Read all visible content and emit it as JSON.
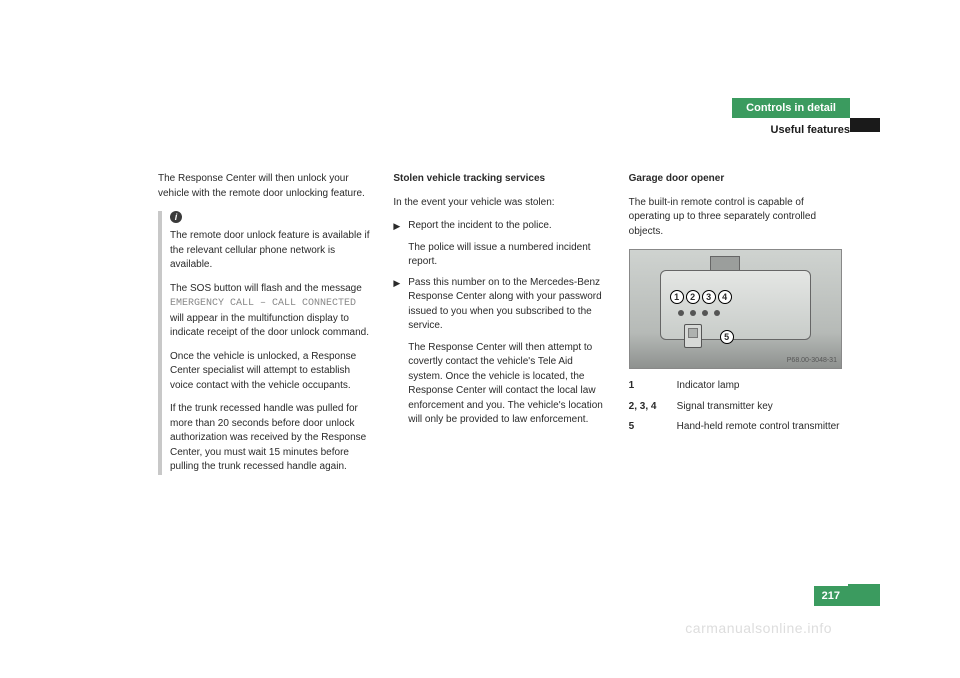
{
  "header": {
    "tab": "Controls in detail",
    "subtitle": "Useful features",
    "tab_bg": "#3b9b5f",
    "tab_fg": "#ffffff"
  },
  "col1": {
    "lead": "The Response Center will then unlock your vehicle with the remote door unlocking feature.",
    "note": {
      "p1": "The remote door unlock feature is available if the relevant cellular phone network is available.",
      "p2a": "The SOS button will flash and the message ",
      "p2code": "EMERGENCY CALL – CALL CONNECTED",
      "p2b": " will appear in the multifunction display to indicate receipt of the door unlock command.",
      "p3": "Once the vehicle is unlocked, a Response Center specialist will attempt to establish voice contact with the vehicle occupants.",
      "p4": "If the trunk recessed handle was pulled for more than 20 seconds before door unlock authorization was received by the Response Center, you must wait 15 minutes before pulling the trunk recessed handle again."
    }
  },
  "col2": {
    "heading": "Stolen vehicle tracking services",
    "intro": "In the event your vehicle was stolen:",
    "b1": {
      "main": "Report the incident to the police.",
      "sub": "The police will issue a numbered incident report."
    },
    "b2": {
      "main": "Pass this number on to the Mercedes-Benz Response Center along with your password issued to you when you subscribed to the service.",
      "sub": "The Response Center will then attempt to covertly contact the vehicle's Tele Aid system. Once the vehicle is located, the Response Center will contact the local law enforcement and you. The vehicle's location will only be provided to law enforcement."
    }
  },
  "col3": {
    "heading": "Garage door opener",
    "intro": "The built-in remote control is capable of operating up to three separately controlled objects.",
    "figure": {
      "id": "P68.00-3048-31",
      "callouts": {
        "c1": "1",
        "c2": "2",
        "c3": "3",
        "c4": "4",
        "c5": "5"
      }
    },
    "legend": [
      {
        "key": "1",
        "val": "Indicator lamp"
      },
      {
        "key": "2, 3, 4",
        "val": "Signal transmitter key"
      },
      {
        "key": "5",
        "val": "Hand-held remote control transmitter"
      }
    ]
  },
  "pagenum": "217",
  "watermark": "carmanualsonline.info",
  "colors": {
    "accent": "#3b9b5f",
    "text": "#2a2a2a",
    "watermark": "#dddddd",
    "note_border": "#c8c8c8"
  }
}
